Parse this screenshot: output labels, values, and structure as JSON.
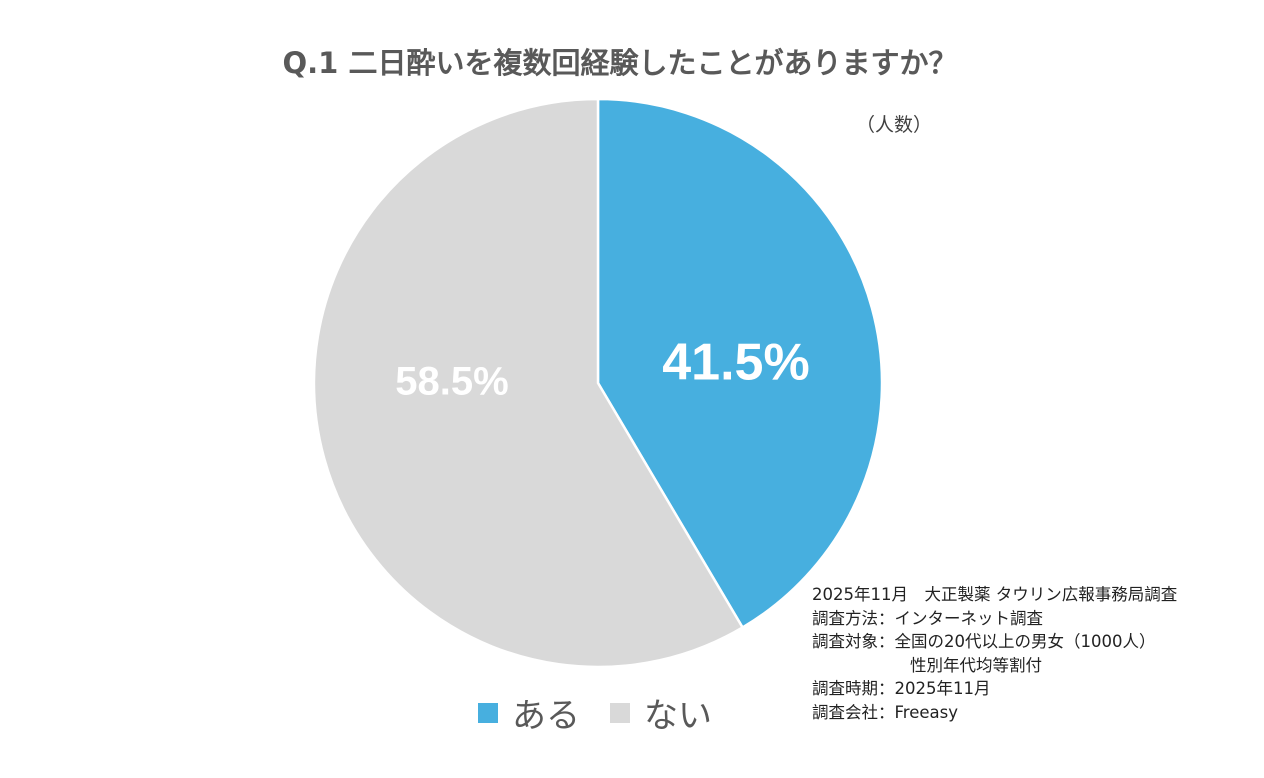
{
  "chart_data": {
    "type": "pie",
    "title": "Q.1 二日酔いを複数回経験したことがありますか？",
    "unit_label": "（人数）",
    "categories": [
      "ある",
      "ない"
    ],
    "values": [
      41.5,
      58.5
    ],
    "data_labels": [
      "41.5%",
      "58.5%"
    ],
    "colors": [
      "#47AFDF",
      "#D9D9D9"
    ],
    "start_angle": "12 o'clock, clockwise",
    "legend_position": "bottom"
  },
  "notes": {
    "line1": "2025年11月　大正製薬 タウリン広報事務局調査",
    "method": "調査方法：インターネット調査",
    "target": "調査対象：全国の20代以上の男女（1000人）",
    "target2": "性別年代均等割付",
    "period": "調査時期：2025年11月",
    "company": "調査会社：Freeasy"
  }
}
